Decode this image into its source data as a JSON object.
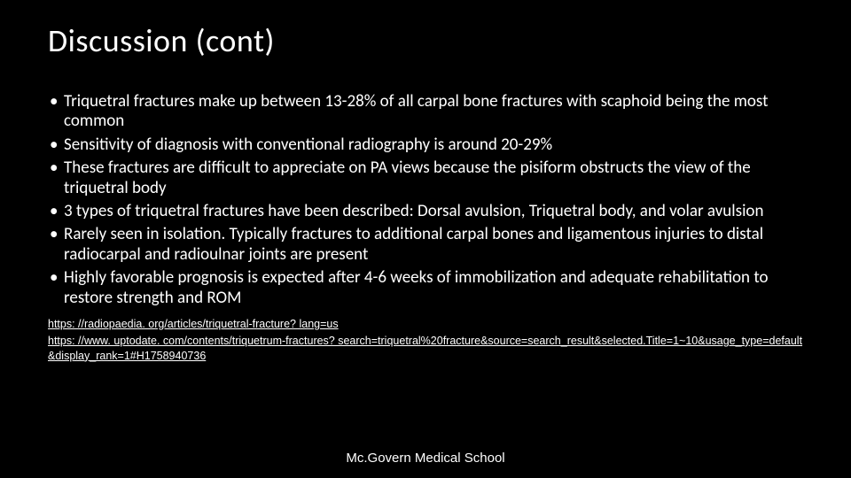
{
  "background_color": "#000000",
  "text_color": "#ffffff",
  "title": "Discussion (cont)",
  "title_fontsize": 36,
  "bullet_marker": "•",
  "bullet_fontsize": 19,
  "bullets": [
    "Triquetral fractures make up between 13-28% of all carpal bone fractures with scaphoid being the most common",
    "Sensitivity of diagnosis with conventional radiography is around 20-29%",
    "These fractures are difficult to appreciate on PA views because the pisiform obstructs the view of the triquetral body",
    "3 types of triquetral fractures have been described: Dorsal avulsion, Triquetral body, and volar avulsion",
    "Rarely seen in isolation. Typically fractures to additional carpal bones and ligamentous injuries to distal radiocarpal and radioulnar joints are present",
    "Highly favorable prognosis is expected after 4-6 weeks of immobilization and adequate rehabilitation to restore strength and ROM"
  ],
  "references": [
    "https: //radiopaedia. org/articles/triquetral-fracture? lang=us",
    "https: //www. uptodate. com/contents/triquetrum-fractures? search=triquetral%20fracture&source=search_result&selected.Title=1~10&usage_type=default&display_rank=1#H1758940736"
  ],
  "reference_fontsize": 12.5,
  "footer": "Mc.Govern Medical School",
  "footer_fontsize": 15
}
